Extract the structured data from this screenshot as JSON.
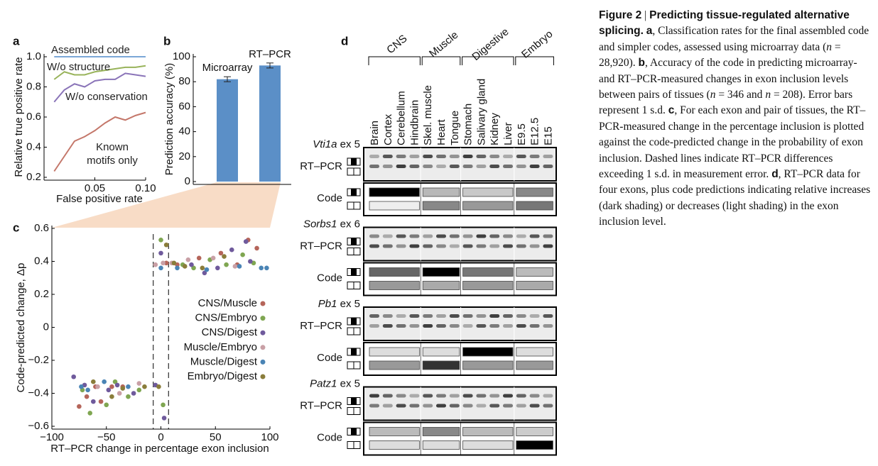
{
  "chart_data": [
    {
      "type": "line",
      "panel": "a",
      "xlabel": "False positive rate",
      "ylabel": "Relative true positive rate",
      "x": [
        0.01,
        0.02,
        0.03,
        0.04,
        0.05,
        0.06,
        0.07,
        0.08,
        0.09,
        0.1
      ],
      "series": [
        {
          "name": "Assembled code",
          "color": "#7ba7d7",
          "values": [
            1,
            1,
            1,
            1,
            1,
            1,
            1,
            1,
            1,
            1
          ]
        },
        {
          "name": "W/o structure",
          "color": "#98b35a",
          "values": [
            0.85,
            0.9,
            0.88,
            0.88,
            0.9,
            0.91,
            0.92,
            0.93,
            0.93,
            0.94
          ]
        },
        {
          "name": "W/o conservation",
          "color": "#8a74b8",
          "values": [
            0.7,
            0.78,
            0.82,
            0.8,
            0.84,
            0.85,
            0.85,
            0.89,
            0.88,
            0.87
          ]
        },
        {
          "name": "Known motifs only",
          "color": "#c4776a",
          "values": [
            0.24,
            0.34,
            0.44,
            0.47,
            0.51,
            0.56,
            0.6,
            0.58,
            0.61,
            0.63
          ]
        }
      ],
      "xlim": [
        0,
        0.1
      ],
      "xticks": [
        0.05,
        {
          "value": 0.1,
          "label": "0.10"
        }
      ],
      "ylim": [
        0.2,
        1
      ],
      "yticks": [
        0.2,
        0.4,
        0.6,
        0.8,
        {
          "value": 1,
          "label": "1.0"
        }
      ]
    },
    {
      "type": "bar",
      "panel": "b",
      "ylabel": "Prediction accuracy (%)",
      "color": "#5b8fc7",
      "categories": [
        "Microarray",
        "RT–PCR"
      ],
      "values": [
        82,
        93
      ],
      "errors": [
        2,
        2
      ],
      "ylim": [
        0,
        100
      ],
      "yticks": [
        0,
        20,
        40,
        60,
        80,
        100
      ]
    },
    {
      "type": "scatter",
      "panel": "c",
      "xlabel": "RT–PCR change in percentage exon inclusion",
      "ylabel": "Code-predicted change, Δp",
      "xlim": [
        -100,
        100
      ],
      "xticks": [
        {
          "value": -100,
          "label": "−100"
        },
        {
          "value": -50,
          "label": "−50"
        },
        0,
        50,
        100
      ],
      "ylim": [
        -0.6,
        0.6
      ],
      "yticks": [
        {
          "value": -0.6,
          "label": "−0.6"
        },
        {
          "value": -0.4,
          "label": "−0.4"
        },
        {
          "value": -0.2,
          "label": "−0.2"
        },
        0,
        0.2,
        0.4,
        0.6
      ],
      "dashed_lines": [
        -7,
        7
      ],
      "series": [
        {
          "name": "CNS/Muscle",
          "color": "#b5655a",
          "x": [
            -75,
            -68,
            -60,
            -55,
            -45,
            -35,
            5,
            15,
            35,
            55,
            70,
            80,
            88
          ],
          "values": [
            -0.48,
            -0.42,
            -0.36,
            -0.45,
            -0.36,
            -0.36,
            0.39,
            0.38,
            0.42,
            0.45,
            0.38,
            0.53,
            0.48
          ]
        },
        {
          "name": "CNS/Embryo",
          "color": "#7fa651",
          "x": [
            -72,
            -65,
            -50,
            -42,
            -30,
            -20,
            0,
            2,
            20,
            30,
            45,
            60,
            75,
            85
          ],
          "values": [
            -0.38,
            -0.52,
            -0.47,
            -0.33,
            -0.42,
            -0.38,
            0.53,
            -0.47,
            0.38,
            0.36,
            0.41,
            0.38,
            0.44,
            0.39
          ]
        },
        {
          "name": "CNS/Digest",
          "color": "#6f5a9c",
          "x": [
            -80,
            -70,
            -62,
            -48,
            -40,
            -25,
            -5,
            0,
            3,
            28,
            40,
            52,
            65,
            78,
            82
          ],
          "values": [
            -0.3,
            -0.35,
            -0.45,
            -0.38,
            -0.35,
            -0.4,
            -0.35,
            0.45,
            -0.55,
            0.38,
            0.33,
            0.36,
            0.47,
            0.52,
            0.4
          ]
        },
        {
          "name": "Muscle/Embryo",
          "color": "#c9a0a6",
          "x": [
            -58,
            -38,
            -20,
            -5,
            2,
            10,
            25,
            48,
            68
          ],
          "values": [
            -0.36,
            -0.4,
            -0.34,
            0.38,
            0.39,
            0.39,
            0.41,
            0.42,
            0.37
          ]
        },
        {
          "name": "Muscle/Digest",
          "color": "#4a84b5",
          "x": [
            -73,
            -67,
            -52,
            -30,
            0,
            15,
            42,
            72,
            92,
            97
          ],
          "values": [
            -0.36,
            -0.38,
            -0.33,
            -0.36,
            0.36,
            0.36,
            0.35,
            0.37,
            0.36,
            0.36
          ]
        },
        {
          "name": "Embryo/Digest",
          "color": "#8a7d3b",
          "x": [
            -62,
            -45,
            -35,
            -15,
            -2,
            5,
            12,
            22,
            38,
            58
          ],
          "values": [
            -0.33,
            -0.42,
            -0.37,
            -0.36,
            -0.36,
            0.5,
            0.39,
            0.37,
            0.36,
            0.43
          ]
        }
      ]
    }
  ],
  "gel": {
    "panel": "d",
    "groups": [
      {
        "name": "CNS",
        "lanes": [
          "Brain",
          "Cortex",
          "Cerebellum",
          "Hindbrain"
        ]
      },
      {
        "name": "Muscle",
        "lanes": [
          "Skel. muscle",
          "Heart",
          "Tongue"
        ]
      },
      {
        "name": "Digestive",
        "lanes": [
          "Stomach",
          "Salivary gland",
          "Kidney",
          "Liver"
        ]
      },
      {
        "name": "Embryo",
        "lanes": [
          "E9.5",
          "E12.5",
          "E15"
        ]
      }
    ],
    "row_labels": {
      "gel": "RT–PCR",
      "code": "Code"
    },
    "exons": [
      {
        "gene": "Vti1a",
        "exon": "ex 5",
        "code_top": [
          "#000000",
          "#b8b8b8",
          "#c8c8c8",
          "#888888"
        ],
        "code_bottom": [
          "#eeeeee",
          "#888888",
          "#999999",
          "#777777"
        ]
      },
      {
        "gene": "Sorbs1",
        "exon": "ex 6",
        "code_top": [
          "#666666",
          "#000000",
          "#777777",
          "#bbbbbb"
        ],
        "code_bottom": [
          "#999999",
          "#aaaaaa",
          "#999999",
          "#aaaaaa"
        ]
      },
      {
        "gene": "Pb1",
        "exon": "ex 5",
        "code_top": [
          "#dddddd",
          "#dddddd",
          "#000000",
          "#dddddd"
        ],
        "code_bottom": [
          "#999999",
          "#333333",
          "#999999",
          "#999999"
        ]
      },
      {
        "gene": "Patz1",
        "exon": "ex 5",
        "code_top": [
          "#bbbbbb",
          "#888888",
          "#bbbbbb",
          "#cccccc"
        ],
        "code_bottom": [
          "#dddddd",
          "#dddddd",
          "#dddddd",
          "#000000"
        ]
      }
    ]
  },
  "caption": [
    {
      "text": "Figure 2",
      "style": "b"
    },
    {
      "text": " | ",
      "style": "n"
    },
    {
      "text": "Predicting tissue-regulated alternative splicing.",
      "style": "b"
    },
    {
      "text": " ",
      "style": "n"
    },
    {
      "text": "a",
      "style": "b"
    },
    {
      "text": ", Classification rates for the final assembled code and simpler codes, assessed using microarray data (",
      "style": "n"
    },
    {
      "text": "n",
      "style": "i"
    },
    {
      "text": " = 28,920). ",
      "style": "n"
    },
    {
      "text": "b",
      "style": "b"
    },
    {
      "text": ", Accuracy of the code in predicting microarray- and RT–PCR-measured changes in exon inclusion levels between pairs of tissues (",
      "style": "n"
    },
    {
      "text": "n",
      "style": "i"
    },
    {
      "text": " = 346 and ",
      "style": "n"
    },
    {
      "text": "n",
      "style": "i"
    },
    {
      "text": " = 208). Error bars represent 1 s.d. ",
      "style": "n"
    },
    {
      "text": "c",
      "style": "b"
    },
    {
      "text": ", For each exon and pair of tissues, the RT–PCR-measured change in the percentage inclusion is plotted against the code-predicted change in the probability of exon inclusion. Dashed lines indicate RT–PCR differences exceeding 1 s.d. in measurement error. ",
      "style": "n"
    },
    {
      "text": "d",
      "style": "b"
    },
    {
      "text": ", RT–PCR data for four exons, plus code predictions indicating relative increases (dark shading) or decreases (light shading) in the exon inclusion level.",
      "style": "n"
    }
  ]
}
